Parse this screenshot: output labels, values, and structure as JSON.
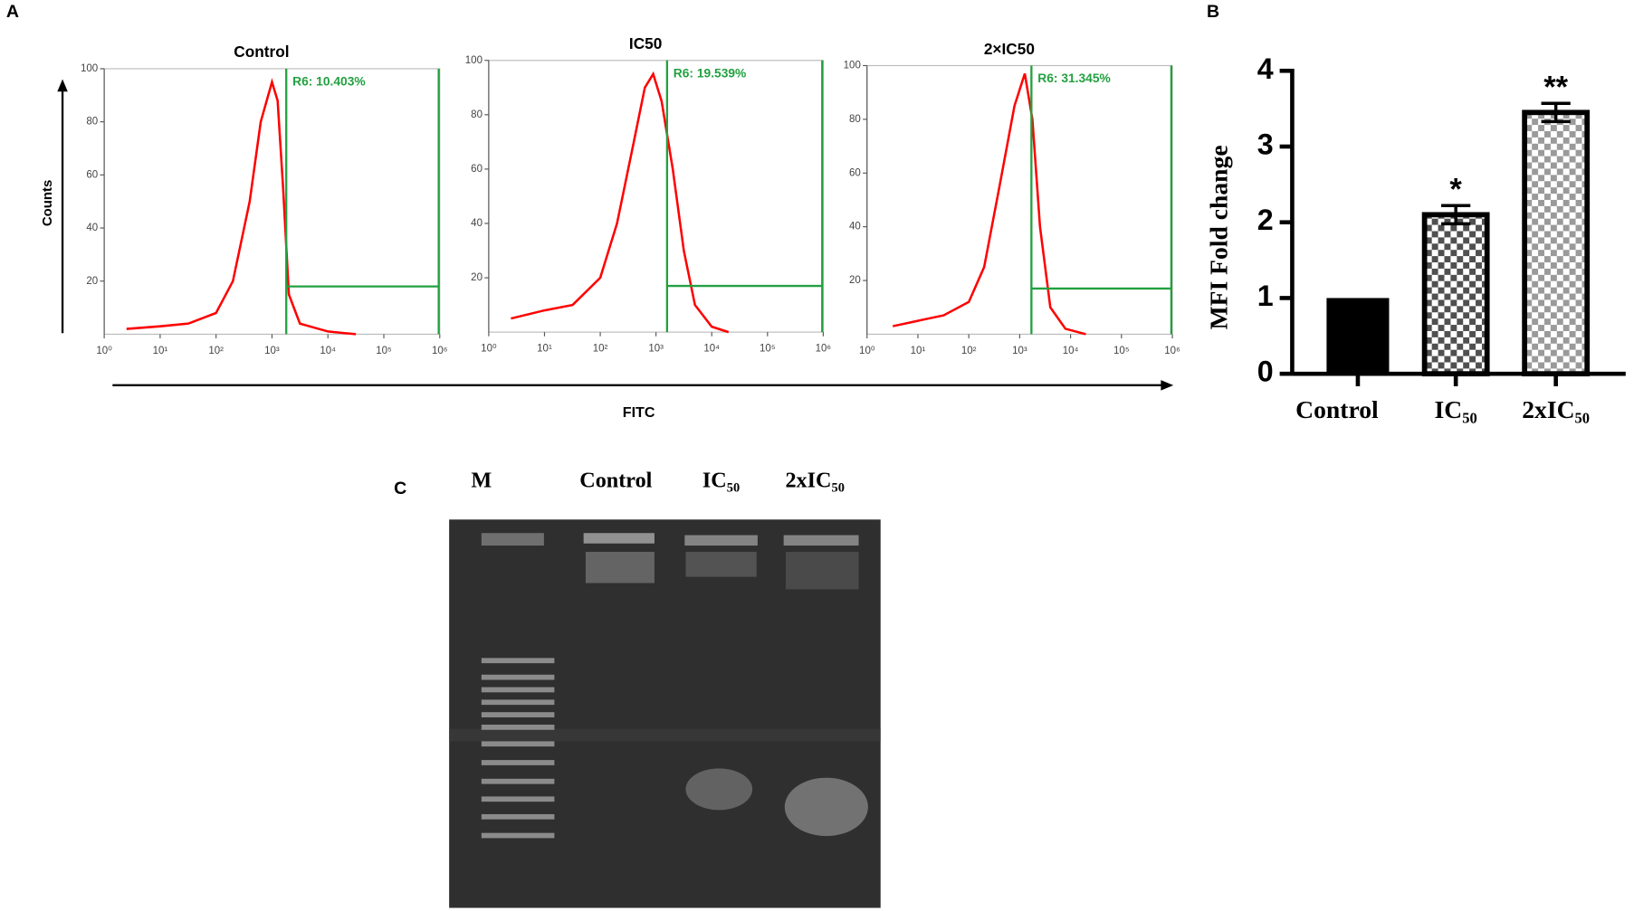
{
  "panel_labels": [
    "A",
    "B",
    "C"
  ],
  "shared_y_label": "Counts",
  "shared_x_label": "FITC",
  "gel": {
    "lanes": [
      "M",
      "Control",
      "IC₅₀",
      "2xIC₅₀"
    ]
  },
  "chart_data": [
    {
      "type": "histogram-line",
      "title": "Control",
      "annotation": "R6: 10.403%",
      "color": "#ff0000",
      "gate_color": "#22a040",
      "xscale": "log",
      "xlim": [
        1,
        1000000
      ],
      "ylim": [
        0,
        100
      ],
      "xticks": [
        {
          "value": 1,
          "label": "10⁰"
        },
        {
          "value": 10,
          "label": "10¹"
        },
        {
          "value": 100,
          "label": "10²"
        },
        {
          "value": 1000,
          "label": "10³"
        },
        {
          "value": 10000,
          "label": "10⁴"
        },
        {
          "value": 100000,
          "label": "10⁵"
        },
        {
          "value": 1000000,
          "label": "10⁶"
        }
      ],
      "yticks": [
        20,
        40,
        60,
        80,
        100
      ],
      "x": [
        2.5,
        10,
        32,
        100,
        200,
        400,
        630,
        1000,
        1260,
        1580,
        2000,
        3160,
        10000,
        31600
      ],
      "values": [
        2,
        3,
        4,
        8,
        20,
        50,
        80,
        95,
        88,
        55,
        15,
        4,
        1,
        0
      ],
      "gate": {
        "x": [
          1800,
          1000000
        ],
        "y": 18
      }
    },
    {
      "type": "histogram-line",
      "title": "IC50",
      "annotation": "R6: 19.539%",
      "color": "#ff0000",
      "gate_color": "#22a040",
      "xscale": "log",
      "xlim": [
        1,
        1000000
      ],
      "ylim": [
        0,
        100
      ],
      "xticks": [
        {
          "value": 1,
          "label": "10⁰"
        },
        {
          "value": 10,
          "label": "10¹"
        },
        {
          "value": 100,
          "label": "10²"
        },
        {
          "value": 1000,
          "label": "10³"
        },
        {
          "value": 10000,
          "label": "10⁴"
        },
        {
          "value": 100000,
          "label": "10⁵"
        },
        {
          "value": 1000000,
          "label": "10⁶"
        }
      ],
      "yticks": [
        20,
        40,
        60,
        80,
        100
      ],
      "x": [
        2.5,
        10,
        32,
        100,
        200,
        400,
        630,
        890,
        1260,
        2000,
        3160,
        5000,
        10000,
        20000
      ],
      "values": [
        5,
        8,
        10,
        20,
        40,
        70,
        90,
        95,
        85,
        60,
        30,
        10,
        2,
        0
      ],
      "gate": {
        "x": [
          1580,
          1000000
        ],
        "y": 17
      }
    },
    {
      "type": "histogram-line",
      "title": "2×IC50",
      "annotation": "R6: 31.345%",
      "color": "#ff0000",
      "gate_color": "#22a040",
      "xscale": "log",
      "xlim": [
        1,
        1000000
      ],
      "ylim": [
        0,
        100
      ],
      "xticks": [
        {
          "value": 1,
          "label": "10⁰"
        },
        {
          "value": 10,
          "label": "10¹"
        },
        {
          "value": 100,
          "label": "10²"
        },
        {
          "value": 1000,
          "label": "10³"
        },
        {
          "value": 10000,
          "label": "10⁴"
        },
        {
          "value": 100000,
          "label": "10⁵"
        },
        {
          "value": 1000000,
          "label": "10⁶"
        }
      ],
      "yticks": [
        20,
        40,
        60,
        80,
        100
      ],
      "x": [
        3.2,
        10,
        32,
        100,
        200,
        400,
        790,
        1260,
        1780,
        2510,
        4000,
        7940,
        20000
      ],
      "values": [
        3,
        5,
        7,
        12,
        25,
        55,
        85,
        97,
        80,
        40,
        10,
        2,
        0
      ],
      "gate": {
        "x": [
          1700,
          1000000
        ],
        "y": 17
      }
    },
    {
      "type": "bar",
      "y_label": "MFI  Fold change",
      "categories": [
        "Control",
        "IC₅₀",
        "2xIC₅₀"
      ],
      "values": [
        1,
        2.1,
        3.45
      ],
      "errors": [
        0,
        0.12,
        0.12
      ],
      "annotations": [
        null,
        "*",
        "**"
      ],
      "colors": [
        "#000000",
        "#505050",
        "#9a9a9a"
      ],
      "ylim": [
        0,
        4
      ],
      "yticks": [
        0,
        1,
        2,
        3,
        4
      ]
    }
  ]
}
